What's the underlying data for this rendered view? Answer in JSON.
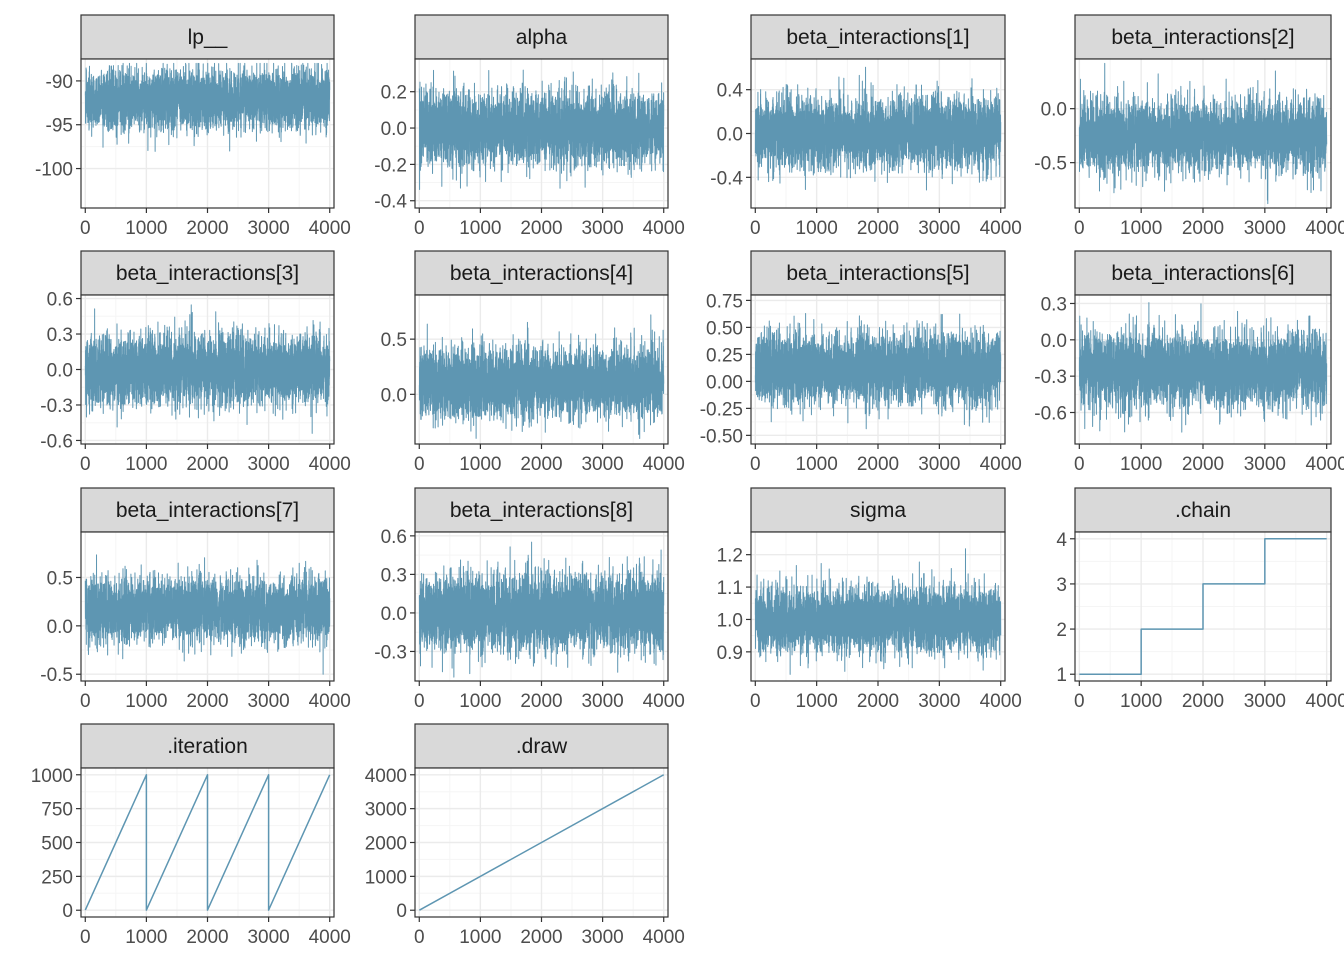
{
  "figure": {
    "background": "#ffffff",
    "colors": {
      "trace": "#5e96b2",
      "strip_fill": "#d9d9d9",
      "strip_border": "#333333",
      "panel_border": "#333333",
      "grid_major": "#ebebeb",
      "grid_minor": "#f5f5f5",
      "tick_label": "#4d4d4d"
    }
  },
  "chart_data": [
    {
      "type": "line",
      "title": "lp__",
      "x_ticks": [
        0,
        1000,
        2000,
        3000,
        4000
      ],
      "y_ticks": [
        -90,
        -95,
        -100
      ],
      "xlim": [
        -70,
        4070
      ],
      "ylim": [
        -104.5,
        -87.5
      ],
      "series": [
        {
          "kind": "trace",
          "n": 4000,
          "center": -92.2,
          "sd": 1.7,
          "min": -104,
          "max": -88
        }
      ]
    },
    {
      "type": "line",
      "title": "alpha",
      "x_ticks": [
        0,
        1000,
        2000,
        3000,
        4000
      ],
      "y_ticks": [
        0.2,
        0.0,
        -0.2,
        -0.4
      ],
      "xlim": [
        -70,
        4070
      ],
      "ylim": [
        -0.44,
        0.38
      ],
      "series": [
        {
          "kind": "trace",
          "n": 4000,
          "center": 0.0,
          "sd": 0.1,
          "min": -0.4,
          "max": 0.35
        }
      ]
    },
    {
      "type": "line",
      "title": "beta_interactions[1]",
      "x_ticks": [
        0,
        1000,
        2000,
        3000,
        4000
      ],
      "y_ticks": [
        0.4,
        0.0,
        -0.4
      ],
      "xlim": [
        -70,
        4070
      ],
      "ylim": [
        -0.68,
        0.68
      ],
      "series": [
        {
          "kind": "trace",
          "n": 4000,
          "center": 0.0,
          "sd": 0.16,
          "min": -0.62,
          "max": 0.62
        }
      ]
    },
    {
      "type": "line",
      "title": "beta_interactions[2]",
      "x_ticks": [
        0,
        1000,
        2000,
        3000,
        4000
      ],
      "y_ticks": [
        0.0,
        -0.5
      ],
      "xlim": [
        -70,
        4070
      ],
      "ylim": [
        -0.92,
        0.46
      ],
      "series": [
        {
          "kind": "trace",
          "n": 4000,
          "center": -0.25,
          "sd": 0.16,
          "min": -0.88,
          "max": 0.42
        }
      ]
    },
    {
      "type": "line",
      "title": "beta_interactions[3]",
      "x_ticks": [
        0,
        1000,
        2000,
        3000,
        4000
      ],
      "y_ticks": [
        0.6,
        0.3,
        0.0,
        -0.3,
        -0.6
      ],
      "xlim": [
        -70,
        4070
      ],
      "ylim": [
        -0.63,
        0.63
      ],
      "series": [
        {
          "kind": "trace",
          "n": 4000,
          "center": 0.0,
          "sd": 0.15,
          "min": -0.58,
          "max": 0.58
        }
      ]
    },
    {
      "type": "line",
      "title": "beta_interactions[4]",
      "x_ticks": [
        0,
        1000,
        2000,
        3000,
        4000
      ],
      "y_ticks": [
        0.5,
        0.0
      ],
      "xlim": [
        -70,
        4070
      ],
      "ylim": [
        -0.45,
        0.9
      ],
      "series": [
        {
          "kind": "trace",
          "n": 4000,
          "center": 0.1,
          "sd": 0.16,
          "min": -0.4,
          "max": 0.72
        }
      ]
    },
    {
      "type": "line",
      "title": "beta_interactions[5]",
      "x_ticks": [
        0,
        1000,
        2000,
        3000,
        4000
      ],
      "y_ticks": [
        0.75,
        0.5,
        0.25,
        0.0,
        -0.25,
        -0.5
      ],
      "xlim": [
        -70,
        4070
      ],
      "ylim": [
        -0.58,
        0.8
      ],
      "series": [
        {
          "kind": "trace",
          "n": 4000,
          "center": 0.12,
          "sd": 0.16,
          "min": -0.54,
          "max": 0.68
        }
      ]
    },
    {
      "type": "line",
      "title": "beta_interactions[6]",
      "x_ticks": [
        0,
        1000,
        2000,
        3000,
        4000
      ],
      "y_ticks": [
        0.3,
        0.0,
        -0.3,
        -0.6
      ],
      "xlim": [
        -70,
        4070
      ],
      "ylim": [
        -0.86,
        0.37
      ],
      "series": [
        {
          "kind": "trace",
          "n": 4000,
          "center": -0.25,
          "sd": 0.15,
          "min": -0.82,
          "max": 0.33
        }
      ]
    },
    {
      "type": "line",
      "title": "beta_interactions[7]",
      "x_ticks": [
        0,
        1000,
        2000,
        3000,
        4000
      ],
      "y_ticks": [
        0.5,
        0.0,
        -0.5
      ],
      "xlim": [
        -70,
        4070
      ],
      "ylim": [
        -0.57,
        0.97
      ],
      "series": [
        {
          "kind": "trace",
          "n": 4000,
          "center": 0.17,
          "sd": 0.16,
          "min": -0.5,
          "max": 0.92
        }
      ]
    },
    {
      "type": "line",
      "title": "beta_interactions[8]",
      "x_ticks": [
        0,
        1000,
        2000,
        3000,
        4000
      ],
      "y_ticks": [
        0.6,
        0.3,
        0.0,
        -0.3
      ],
      "xlim": [
        -70,
        4070
      ],
      "ylim": [
        -0.53,
        0.63
      ],
      "series": [
        {
          "kind": "trace",
          "n": 4000,
          "center": 0.0,
          "sd": 0.15,
          "min": -0.5,
          "max": 0.57
        }
      ]
    },
    {
      "type": "line",
      "title": "sigma",
      "x_ticks": [
        0,
        1000,
        2000,
        3000,
        4000
      ],
      "y_ticks": [
        1.2,
        1.1,
        1.0,
        0.9
      ],
      "xlim": [
        -70,
        4070
      ],
      "ylim": [
        0.81,
        1.27
      ],
      "series": [
        {
          "kind": "trace",
          "n": 4000,
          "center": 1.0,
          "sd": 0.05,
          "min": 0.83,
          "max": 1.23
        }
      ]
    },
    {
      "type": "line",
      "title": ".chain",
      "x_ticks": [
        0,
        1000,
        2000,
        3000,
        4000
      ],
      "y_ticks": [
        4,
        3,
        2,
        1
      ],
      "xlim": [
        -70,
        4070
      ],
      "ylim": [
        0.85,
        4.15
      ],
      "series": [
        {
          "kind": "step",
          "x": [
            0,
            1000,
            1000,
            2000,
            2000,
            3000,
            3000,
            4000
          ],
          "y": [
            1,
            1,
            2,
            2,
            3,
            3,
            4,
            4
          ]
        }
      ]
    },
    {
      "type": "line",
      "title": ".iteration",
      "x_ticks": [
        0,
        1000,
        2000,
        3000,
        4000
      ],
      "y_ticks": [
        1000,
        750,
        500,
        250,
        0
      ],
      "xlim": [
        -70,
        4070
      ],
      "ylim": [
        -50,
        1050
      ],
      "series": [
        {
          "kind": "line",
          "x": [
            0,
            1000,
            1000,
            2000,
            2000,
            3000,
            3000,
            4000
          ],
          "y": [
            1,
            1000,
            1,
            1000,
            1,
            1000,
            1,
            1000
          ]
        }
      ]
    },
    {
      "type": "line",
      "title": ".draw",
      "x_ticks": [
        0,
        1000,
        2000,
        3000,
        4000
      ],
      "y_ticks": [
        4000,
        3000,
        2000,
        1000,
        0
      ],
      "xlim": [
        -70,
        4070
      ],
      "ylim": [
        -200,
        4200
      ],
      "series": [
        {
          "kind": "line",
          "x": [
            1,
            4000
          ],
          "y": [
            1,
            4000
          ]
        }
      ]
    }
  ]
}
